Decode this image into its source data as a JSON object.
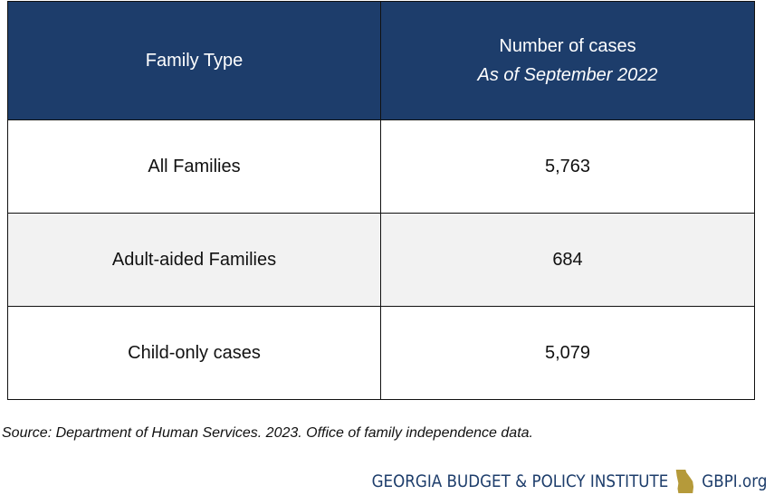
{
  "table": {
    "header": [
      "Family Type",
      "Number of cases"
    ],
    "header_subtitle": "As of September 2022",
    "rows": [
      [
        "All Families",
        "5,763"
      ],
      [
        "Adult-aided Families",
        "684"
      ],
      [
        "Child-only cases",
        "5,079"
      ]
    ]
  },
  "source": "Source: Department of Human Services. 2023. Office of family independence data.",
  "footer": {
    "organization": "GEORGIA BUDGET & POLICY INSTITUTE",
    "url": "GBPI.org"
  }
}
